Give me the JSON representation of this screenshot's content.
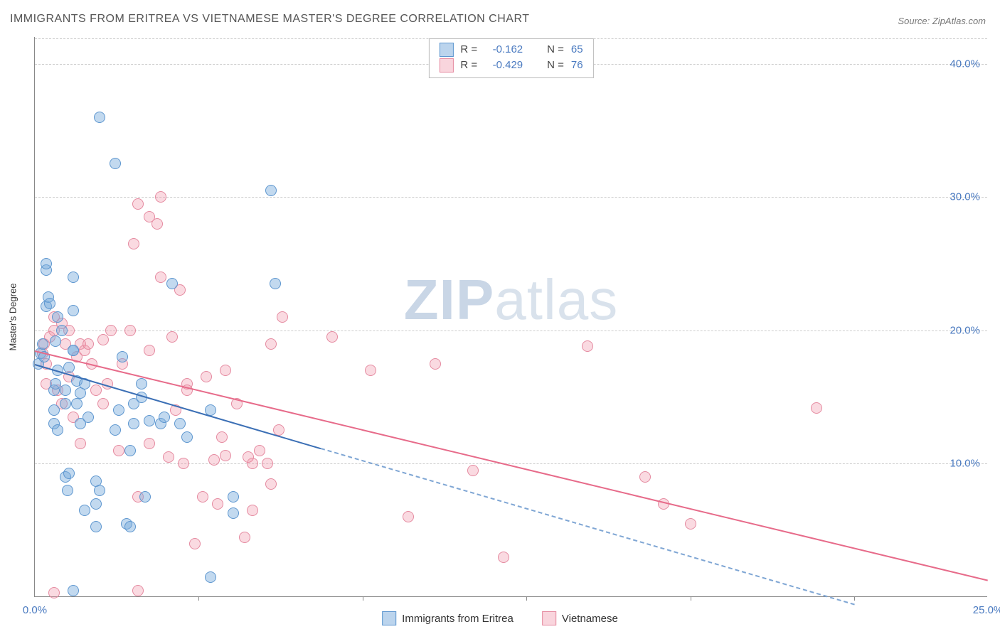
{
  "title": "IMMIGRANTS FROM ERITREA VS VIETNAMESE MASTER'S DEGREE CORRELATION CHART",
  "source": "Source: ZipAtlas.com",
  "watermark_parts": [
    "ZIP",
    "atlas"
  ],
  "chart": {
    "type": "scatter",
    "ylabel": "Master's Degree",
    "background_color": "#ffffff",
    "grid_color": "#cccccc",
    "axis_color": "#888888",
    "label_color": "#4a7ac0",
    "xlim": [
      0,
      25
    ],
    "ylim": [
      0,
      42
    ],
    "xticks": [
      {
        "value": 0,
        "label": "0.0%"
      },
      {
        "value": 25,
        "label": "25.0%"
      }
    ],
    "xtick_marks": [
      4.3,
      8.6,
      12.9,
      17.2,
      21.5
    ],
    "yticks": [
      {
        "value": 10,
        "label": "10.0%"
      },
      {
        "value": 20,
        "label": "20.0%"
      },
      {
        "value": 30,
        "label": "30.0%"
      },
      {
        "value": 40,
        "label": "40.0%"
      }
    ],
    "series": [
      {
        "name": "Immigrants from Eritrea",
        "color_fill": "rgba(120,170,220,0.45)",
        "color_stroke": "#5d96cf",
        "trend_color": "#3b6fb5",
        "marker_size": 16,
        "R": "-0.162",
        "N": "65",
        "trendline": {
          "x1": 0,
          "y1": 17.5,
          "x2": 7.5,
          "y2": 11.2,
          "dash_to_x": 21.5,
          "dash_to_y": -0.5
        },
        "points": [
          [
            0.1,
            17.5
          ],
          [
            0.15,
            18.3
          ],
          [
            0.2,
            19.0
          ],
          [
            0.25,
            18.0
          ],
          [
            0.3,
            24.5
          ],
          [
            0.3,
            25.0
          ],
          [
            0.3,
            21.8
          ],
          [
            0.35,
            22.5
          ],
          [
            0.4,
            22.0
          ],
          [
            0.5,
            14.0
          ],
          [
            0.5,
            13.0
          ],
          [
            0.55,
            19.2
          ],
          [
            0.5,
            15.5
          ],
          [
            0.55,
            16.0
          ],
          [
            0.6,
            17.0
          ],
          [
            0.6,
            12.5
          ],
          [
            0.6,
            21.0
          ],
          [
            0.7,
            20.0
          ],
          [
            0.8,
            15.5
          ],
          [
            0.8,
            14.5
          ],
          [
            0.8,
            9.0
          ],
          [
            0.85,
            8.0
          ],
          [
            0.9,
            17.2
          ],
          [
            0.9,
            9.3
          ],
          [
            1.0,
            18.5
          ],
          [
            1.0,
            21.5
          ],
          [
            1.0,
            18.5
          ],
          [
            1.0,
            24.0
          ],
          [
            1.1,
            14.5
          ],
          [
            1.1,
            16.2
          ],
          [
            1.2,
            15.3
          ],
          [
            1.2,
            13.0
          ],
          [
            1.3,
            16.0
          ],
          [
            1.3,
            6.5
          ],
          [
            1.4,
            13.5
          ],
          [
            1.6,
            8.7
          ],
          [
            1.6,
            7.0
          ],
          [
            1.6,
            5.3
          ],
          [
            1.7,
            8.0
          ],
          [
            1.7,
            36.0
          ],
          [
            2.1,
            12.5
          ],
          [
            2.1,
            32.5
          ],
          [
            2.2,
            14.0
          ],
          [
            2.3,
            18.0
          ],
          [
            2.4,
            5.5
          ],
          [
            2.5,
            5.3
          ],
          [
            2.5,
            11.0
          ],
          [
            2.6,
            13.0
          ],
          [
            2.6,
            14.5
          ],
          [
            2.8,
            15.0
          ],
          [
            2.8,
            16.0
          ],
          [
            2.9,
            7.5
          ],
          [
            3.0,
            13.2
          ],
          [
            3.3,
            13.0
          ],
          [
            3.4,
            13.5
          ],
          [
            3.6,
            23.5
          ],
          [
            3.8,
            13.0
          ],
          [
            4.0,
            12.0
          ],
          [
            4.6,
            14.0
          ],
          [
            4.6,
            1.5
          ],
          [
            5.2,
            6.3
          ],
          [
            5.2,
            7.5
          ],
          [
            6.2,
            30.5
          ],
          [
            6.3,
            23.5
          ],
          [
            1.0,
            0.5
          ]
        ]
      },
      {
        "name": "Vietnamese",
        "color_fill": "rgba(240,150,170,0.35)",
        "color_stroke": "#e58aa0",
        "trend_color": "#e76b8a",
        "marker_size": 16,
        "R": "-0.429",
        "N": "76",
        "trendline": {
          "x1": 0,
          "y1": 18.5,
          "x2": 25,
          "y2": 1.3
        },
        "points": [
          [
            0.2,
            18.3
          ],
          [
            0.25,
            19.0
          ],
          [
            0.3,
            17.5
          ],
          [
            0.3,
            16.0
          ],
          [
            0.4,
            19.5
          ],
          [
            0.5,
            21.0
          ],
          [
            0.5,
            20.0
          ],
          [
            0.5,
            0.3
          ],
          [
            0.6,
            15.5
          ],
          [
            0.7,
            14.5
          ],
          [
            0.7,
            20.5
          ],
          [
            0.8,
            19.0
          ],
          [
            0.9,
            16.5
          ],
          [
            0.9,
            20.0
          ],
          [
            1.0,
            13.5
          ],
          [
            1.1,
            18.0
          ],
          [
            1.2,
            19.0
          ],
          [
            1.2,
            11.5
          ],
          [
            1.3,
            18.5
          ],
          [
            1.4,
            19.0
          ],
          [
            1.5,
            17.5
          ],
          [
            1.6,
            15.5
          ],
          [
            1.8,
            19.3
          ],
          [
            1.8,
            14.5
          ],
          [
            1.9,
            16.0
          ],
          [
            2.0,
            20.0
          ],
          [
            2.2,
            11.0
          ],
          [
            2.3,
            17.5
          ],
          [
            2.5,
            20.0
          ],
          [
            2.6,
            26.5
          ],
          [
            2.7,
            29.5
          ],
          [
            2.7,
            7.5
          ],
          [
            2.7,
            0.5
          ],
          [
            3.0,
            28.5
          ],
          [
            3.0,
            18.5
          ],
          [
            3.0,
            11.5
          ],
          [
            3.2,
            28.0
          ],
          [
            3.3,
            30.0
          ],
          [
            3.3,
            24.0
          ],
          [
            3.5,
            10.5
          ],
          [
            3.6,
            19.5
          ],
          [
            3.7,
            14.0
          ],
          [
            3.8,
            23.0
          ],
          [
            3.9,
            10.0
          ],
          [
            4.0,
            16.0
          ],
          [
            4.0,
            15.5
          ],
          [
            4.2,
            4.0
          ],
          [
            4.4,
            7.5
          ],
          [
            4.5,
            16.5
          ],
          [
            4.7,
            10.3
          ],
          [
            4.8,
            7.0
          ],
          [
            4.9,
            12.0
          ],
          [
            5.0,
            10.6
          ],
          [
            5.0,
            17.0
          ],
          [
            5.3,
            14.5
          ],
          [
            5.5,
            4.5
          ],
          [
            5.7,
            10.0
          ],
          [
            5.7,
            6.5
          ],
          [
            5.9,
            11.0
          ],
          [
            6.1,
            10.0
          ],
          [
            6.2,
            19.0
          ],
          [
            6.2,
            8.5
          ],
          [
            6.4,
            12.5
          ],
          [
            6.5,
            21.0
          ],
          [
            7.8,
            19.5
          ],
          [
            8.8,
            17.0
          ],
          [
            9.8,
            6.0
          ],
          [
            10.5,
            17.5
          ],
          [
            11.5,
            9.5
          ],
          [
            12.3,
            3.0
          ],
          [
            14.5,
            18.8
          ],
          [
            16.0,
            9.0
          ],
          [
            16.5,
            7.0
          ],
          [
            17.2,
            5.5
          ],
          [
            20.5,
            14.2
          ],
          [
            5.6,
            10.5
          ]
        ]
      }
    ]
  },
  "legend_top": {
    "rows": [
      {
        "swatch": "blue",
        "R_label": "R =",
        "R_val": "-0.162",
        "N_label": "N =",
        "N_val": "65"
      },
      {
        "swatch": "pink",
        "R_label": "R =",
        "R_val": "-0.429",
        "N_label": "N =",
        "N_val": "76"
      }
    ]
  },
  "legend_bottom": [
    {
      "swatch": "blue",
      "label": "Immigrants from Eritrea"
    },
    {
      "swatch": "pink",
      "label": "Vietnamese"
    }
  ]
}
